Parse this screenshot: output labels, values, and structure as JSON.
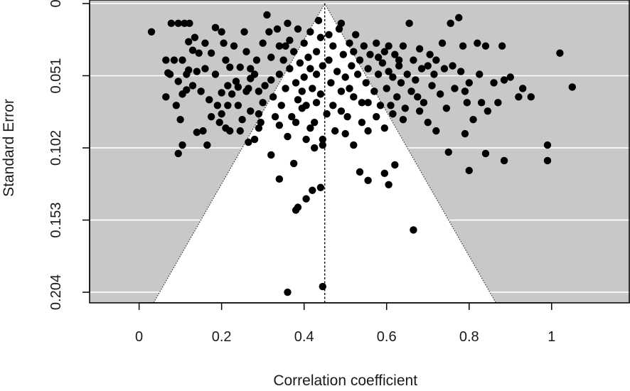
{
  "chart_data": {
    "type": "scatter",
    "subtype": "funnel-plot",
    "xlabel": "Correlation coefficient",
    "ylabel": "Standard Error",
    "xlim": [
      -0.12,
      1.19
    ],
    "ylim": [
      0.2115,
      -0.0025
    ],
    "y_reversed": true,
    "x_ticks": [
      0,
      0.2,
      0.4,
      0.6,
      0.8,
      1
    ],
    "x_tick_labels": [
      "0",
      "0.2",
      "0.4",
      "0.6",
      "0.8",
      "1"
    ],
    "y_ticks": [
      0,
      0.051,
      0.102,
      0.153,
      0.204
    ],
    "y_tick_labels": [
      "0",
      "0.051",
      "0.102",
      "0.153",
      "0.204"
    ],
    "grid": true,
    "background_color": "#c8c8c8",
    "funnel_color": "#ffffff",
    "point_color": "#000000",
    "pooled_estimate": 0.45,
    "funnel": {
      "apex": [
        0.45,
        0
      ],
      "left_base": [
        0.035,
        0.2115
      ],
      "right_base": [
        0.865,
        0.2115
      ]
    },
    "series": [
      {
        "points": [
          [
            0.03,
            0.02
          ],
          [
            0.078,
            0.014
          ],
          [
            0.095,
            0.014
          ],
          [
            0.11,
            0.014
          ],
          [
            0.122,
            0.014
          ],
          [
            0.12,
            0.027
          ],
          [
            0.135,
            0.024
          ],
          [
            0.13,
            0.033
          ],
          [
            0.065,
            0.04
          ],
          [
            0.085,
            0.04
          ],
          [
            0.105,
            0.04
          ],
          [
            0.07,
            0.049
          ],
          [
            0.12,
            0.047
          ],
          [
            0.14,
            0.048
          ],
          [
            0.075,
            0.05
          ],
          [
            0.065,
            0.066
          ],
          [
            0.105,
            0.064
          ],
          [
            0.115,
            0.061
          ],
          [
            0.13,
            0.058
          ],
          [
            0.09,
            0.072
          ],
          [
            0.15,
            0.062
          ],
          [
            0.17,
            0.068
          ],
          [
            0.16,
            0.046
          ],
          [
            0.175,
            0.035
          ],
          [
            0.16,
            0.028
          ],
          [
            0.185,
            0.017
          ],
          [
            0.2,
            0.02
          ],
          [
            0.205,
            0.028
          ],
          [
            0.21,
            0.04
          ],
          [
            0.22,
            0.045
          ],
          [
            0.23,
            0.03
          ],
          [
            0.215,
            0.058
          ],
          [
            0.2,
            0.063
          ],
          [
            0.19,
            0.072
          ],
          [
            0.175,
            0.08
          ],
          [
            0.195,
            0.084
          ],
          [
            0.215,
            0.072
          ],
          [
            0.225,
            0.064
          ],
          [
            0.24,
            0.072
          ],
          [
            0.25,
            0.082
          ],
          [
            0.22,
            0.09
          ],
          [
            0.21,
            0.088
          ],
          [
            0.24,
            0.059
          ],
          [
            0.245,
            0.045
          ],
          [
            0.26,
            0.034
          ],
          [
            0.255,
            0.02
          ],
          [
            0.1,
            0.082
          ],
          [
            0.105,
            0.1
          ],
          [
            0.095,
            0.106
          ],
          [
            0.14,
            0.091
          ],
          [
            0.165,
            0.1
          ],
          [
            0.27,
            0.046
          ],
          [
            0.265,
            0.06
          ],
          [
            0.27,
            0.076
          ],
          [
            0.28,
            0.05
          ],
          [
            0.285,
            0.04
          ],
          [
            0.29,
            0.062
          ],
          [
            0.29,
            0.078
          ],
          [
            0.3,
            0.028
          ],
          [
            0.3,
            0.07
          ],
          [
            0.295,
            0.084
          ],
          [
            0.31,
            0.008
          ],
          [
            0.315,
            0.02
          ],
          [
            0.32,
            0.038
          ],
          [
            0.32,
            0.054
          ],
          [
            0.325,
            0.066
          ],
          [
            0.335,
            0.018
          ],
          [
            0.34,
            0.03
          ],
          [
            0.34,
            0.05
          ],
          [
            0.345,
            0.072
          ],
          [
            0.35,
            0.04
          ],
          [
            0.355,
            0.06
          ],
          [
            0.36,
            0.014
          ],
          [
            0.365,
            0.026
          ],
          [
            0.365,
            0.046
          ],
          [
            0.37,
            0.08
          ],
          [
            0.375,
            0.034
          ],
          [
            0.38,
            0.056
          ],
          [
            0.385,
            0.018
          ],
          [
            0.385,
            0.068
          ],
          [
            0.39,
            0.042
          ],
          [
            0.395,
            0.062
          ],
          [
            0.4,
            0.028
          ],
          [
            0.4,
            0.052
          ],
          [
            0.405,
            0.072
          ],
          [
            0.41,
            0.038
          ],
          [
            0.415,
            0.02
          ],
          [
            0.415,
            0.046
          ],
          [
            0.42,
            0.06
          ],
          [
            0.425,
            0.084
          ],
          [
            0.43,
            0.034
          ],
          [
            0.43,
            0.05
          ],
          [
            0.435,
            0.012
          ],
          [
            0.44,
            0.064
          ],
          [
            0.445,
            0.044
          ],
          [
            0.445,
            0.096
          ],
          [
            0.46,
            0.022
          ],
          [
            0.46,
            0.04
          ],
          [
            0.465,
            0.056
          ],
          [
            0.47,
            0.03
          ],
          [
            0.47,
            0.072
          ],
          [
            0.48,
            0.048
          ],
          [
            0.485,
            0.018
          ],
          [
            0.49,
            0.062
          ],
          [
            0.495,
            0.036
          ],
          [
            0.5,
            0.052
          ],
          [
            0.505,
            0.08
          ],
          [
            0.51,
            0.028
          ],
          [
            0.515,
            0.044
          ],
          [
            0.52,
            0.066
          ],
          [
            0.525,
            0.022
          ],
          [
            0.53,
            0.05
          ],
          [
            0.535,
            0.04
          ],
          [
            0.54,
            0.07
          ],
          [
            0.545,
            0.03
          ],
          [
            0.55,
            0.056
          ],
          [
            0.555,
            0.046
          ],
          [
            0.56,
            0.036
          ],
          [
            0.57,
            0.062
          ],
          [
            0.575,
            0.028
          ],
          [
            0.58,
            0.05
          ],
          [
            0.585,
            0.072
          ],
          [
            0.59,
            0.042
          ],
          [
            0.595,
            0.034
          ],
          [
            0.6,
            0.06
          ],
          [
            0.605,
            0.048
          ],
          [
            0.61,
            0.072
          ],
          [
            0.615,
            0.052
          ],
          [
            0.62,
            0.036
          ],
          [
            0.625,
            0.066
          ],
          [
            0.63,
            0.044
          ],
          [
            0.635,
            0.056
          ],
          [
            0.64,
            0.03
          ],
          [
            0.645,
            0.074
          ],
          [
            0.65,
            0.05
          ],
          [
            0.655,
            0.014
          ],
          [
            0.66,
            0.062
          ],
          [
            0.665,
            0.04
          ],
          [
            0.67,
            0.054
          ],
          [
            0.675,
            0.066
          ],
          [
            0.68,
            0.032
          ],
          [
            0.685,
            0.046
          ],
          [
            0.69,
            0.07
          ],
          [
            0.7,
            0.044
          ],
          [
            0.705,
            0.036
          ],
          [
            0.71,
            0.058
          ],
          [
            0.715,
            0.05
          ],
          [
            0.72,
            0.04
          ],
          [
            0.73,
            0.064
          ],
          [
            0.735,
            0.028
          ],
          [
            0.74,
            0.046
          ],
          [
            0.745,
            0.074
          ],
          [
            0.755,
            0.014
          ],
          [
            0.76,
            0.044
          ],
          [
            0.765,
            0.06
          ],
          [
            0.775,
            0.01
          ],
          [
            0.78,
            0.048
          ],
          [
            0.785,
            0.03
          ],
          [
            0.79,
            0.062
          ],
          [
            0.795,
            0.07
          ],
          [
            0.8,
            0.056
          ],
          [
            0.81,
            0.082
          ],
          [
            0.82,
            0.028
          ],
          [
            0.825,
            0.05
          ],
          [
            0.83,
            0.07
          ],
          [
            0.84,
            0.03
          ],
          [
            0.845,
            0.076
          ],
          [
            0.86,
            0.056
          ],
          [
            0.87,
            0.07
          ],
          [
            0.88,
            0.03
          ],
          [
            0.885,
            0.054
          ],
          [
            0.9,
            0.052
          ],
          [
            0.92,
            0.066
          ],
          [
            0.93,
            0.06
          ],
          [
            0.95,
            0.066
          ],
          [
            0.99,
            0.1
          ],
          [
            1.02,
            0.035
          ],
          [
            1.05,
            0.059
          ],
          [
            0.34,
            0.086
          ],
          [
            0.36,
            0.094
          ],
          [
            0.38,
            0.084
          ],
          [
            0.405,
            0.096
          ],
          [
            0.425,
            0.102
          ],
          [
            0.445,
            0.1
          ],
          [
            0.5,
            0.092
          ],
          [
            0.52,
            0.1
          ],
          [
            0.54,
            0.084
          ],
          [
            0.555,
            0.09
          ],
          [
            0.575,
            0.08
          ],
          [
            0.595,
            0.088
          ],
          [
            0.615,
            0.078
          ],
          [
            0.64,
            0.082
          ],
          [
            0.68,
            0.076
          ],
          [
            0.7,
            0.084
          ],
          [
            0.72,
            0.09
          ],
          [
            0.75,
            0.105
          ],
          [
            0.79,
            0.092
          ],
          [
            0.8,
            0.118
          ],
          [
            0.84,
            0.106
          ],
          [
            0.885,
            0.111
          ],
          [
            0.99,
            0.111
          ],
          [
            0.28,
            0.096
          ],
          [
            0.32,
            0.107
          ],
          [
            0.375,
            0.113
          ],
          [
            0.34,
            0.124
          ],
          [
            0.535,
            0.119
          ],
          [
            0.555,
            0.125
          ],
          [
            0.595,
            0.12
          ],
          [
            0.605,
            0.128
          ],
          [
            0.62,
            0.114
          ],
          [
            0.44,
            0.13
          ],
          [
            0.42,
            0.132
          ],
          [
            0.405,
            0.138
          ],
          [
            0.38,
            0.146
          ],
          [
            0.385,
            0.144
          ],
          [
            0.665,
            0.16
          ],
          [
            0.36,
            0.204
          ],
          [
            0.445,
            0.2
          ],
          [
            0.415,
            0.088
          ],
          [
            0.43,
            0.07
          ],
          [
            0.455,
            0.078
          ],
          [
            0.475,
            0.09
          ],
          [
            0.49,
            0.076
          ],
          [
            0.51,
            0.06
          ],
          [
            0.395,
            0.074
          ],
          [
            0.305,
            0.058
          ],
          [
            0.33,
            0.08
          ],
          [
            0.555,
            0.07
          ],
          [
            0.49,
            0.014
          ],
          [
            0.52,
            0.034
          ],
          [
            0.44,
            0.024
          ],
          [
            0.355,
            0.03
          ],
          [
            0.58,
            0.038
          ],
          [
            0.605,
            0.03
          ],
          [
            0.63,
            0.04
          ],
          [
            0.27,
            0.053
          ],
          [
            0.29,
            0.088
          ],
          [
            0.26,
            0.062
          ],
          [
            0.145,
            0.035
          ],
          [
            0.095,
            0.055
          ],
          [
            0.115,
            0.05
          ],
          [
            0.185,
            0.05
          ],
          [
            0.2,
            0.078
          ],
          [
            0.235,
            0.055
          ],
          [
            0.245,
            0.09
          ],
          [
            0.155,
            0.09
          ],
          [
            0.265,
            0.098
          ]
        ]
      }
    ]
  }
}
